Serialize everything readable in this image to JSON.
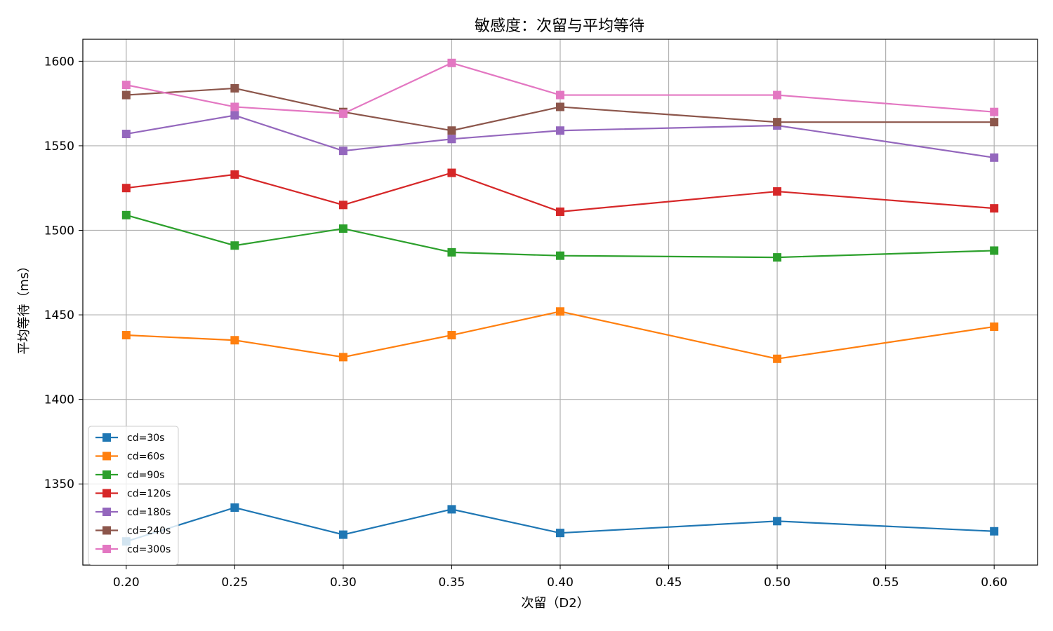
{
  "chart_data": {
    "type": "line",
    "title": "敏感度：次留与平均等待",
    "xlabel": "次留（D2）",
    "ylabel": "平均等待（ms）",
    "x": [
      0.2,
      0.25,
      0.3,
      0.35,
      0.4,
      0.5,
      0.6
    ],
    "xlim": [
      0.18,
      0.62
    ],
    "ylim": [
      1302,
      1613
    ],
    "xticks": [
      "0.20",
      "0.25",
      "0.30",
      "0.35",
      "0.40",
      "0.45",
      "0.50",
      "0.55",
      "0.60"
    ],
    "xtick_values": [
      0.2,
      0.25,
      0.3,
      0.35,
      0.4,
      0.45,
      0.5,
      0.55,
      0.6
    ],
    "yticks": [
      "1350",
      "1400",
      "1450",
      "1500",
      "1550",
      "1600"
    ],
    "ytick_values": [
      1350,
      1400,
      1450,
      1500,
      1550,
      1600
    ],
    "grid": true,
    "legend_position": "lower-left",
    "marker": "square",
    "series": [
      {
        "name": "cd=30s",
        "color": "#1f77b4",
        "values": [
          1316,
          1336,
          1320,
          1335,
          1321,
          1328,
          1322
        ]
      },
      {
        "name": "cd=60s",
        "color": "#ff7f0e",
        "values": [
          1438,
          1435,
          1425,
          1438,
          1452,
          1424,
          1443
        ]
      },
      {
        "name": "cd=90s",
        "color": "#2ca02c",
        "values": [
          1509,
          1491,
          1501,
          1487,
          1485,
          1484,
          1488
        ]
      },
      {
        "name": "cd=120s",
        "color": "#d62728",
        "values": [
          1525,
          1533,
          1515,
          1534,
          1511,
          1523,
          1513
        ]
      },
      {
        "name": "cd=180s",
        "color": "#9467bd",
        "values": [
          1557,
          1568,
          1547,
          1554,
          1559,
          1562,
          1543
        ]
      },
      {
        "name": "cd=240s",
        "color": "#8c564b",
        "values": [
          1580,
          1584,
          1570,
          1559,
          1573,
          1564,
          1564
        ]
      },
      {
        "name": "cd=300s",
        "color": "#e377c2",
        "values": [
          1586,
          1573,
          1569,
          1599,
          1580,
          1580,
          1570
        ]
      }
    ]
  }
}
